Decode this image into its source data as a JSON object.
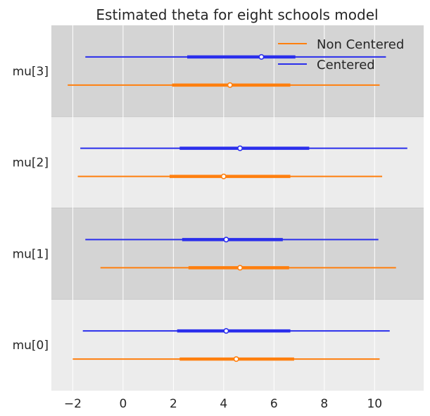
{
  "chart_data": {
    "type": "forest",
    "title": "Estimated theta for eight schools model",
    "xlabel": "",
    "ylabel": "",
    "xlim": [
      -2.85,
      11.95
    ],
    "x_ticks": [
      -2,
      0,
      2,
      4,
      6,
      8,
      10
    ],
    "x_tick_labels": [
      "−2",
      "0",
      "2",
      "4",
      "6",
      "8",
      "10"
    ],
    "grid": true,
    "legend_position": "top-right",
    "categories": [
      "mu[3]",
      "mu[2]",
      "mu[1]",
      "mu[0]"
    ],
    "band_colors": [
      "#d4d4d4",
      "#ececec",
      "#d4d4d4",
      "#ececec"
    ],
    "series": [
      {
        "name": "Non Centered",
        "color": "#ff7f0e",
        "hdi_low": [
          -2.2,
          -1.8,
          -0.9,
          -2.0
        ],
        "hdi_high": [
          10.2,
          10.3,
          10.85,
          10.2
        ],
        "iqr_low": [
          1.95,
          1.85,
          2.6,
          2.25
        ],
        "iqr_high": [
          6.65,
          6.65,
          6.6,
          6.8
        ],
        "mean": [
          4.25,
          4.0,
          4.65,
          4.5
        ]
      },
      {
        "name": "Centered",
        "color": "#2a2eec",
        "hdi_low": [
          -1.5,
          -1.7,
          -1.5,
          -1.6
        ],
        "hdi_high": [
          10.45,
          11.3,
          10.15,
          10.6
        ],
        "iqr_low": [
          2.55,
          2.25,
          2.35,
          2.15
        ],
        "iqr_high": [
          6.85,
          7.4,
          6.35,
          6.65
        ],
        "mean": [
          5.5,
          4.65,
          4.1,
          4.1
        ]
      }
    ]
  }
}
